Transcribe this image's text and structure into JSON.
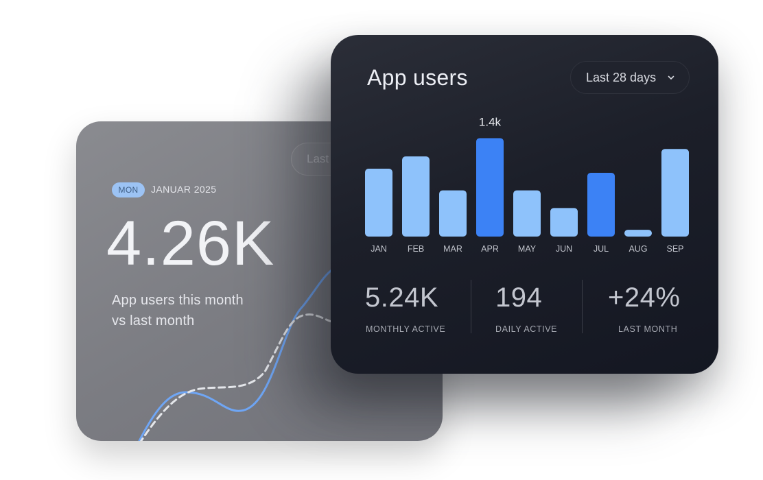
{
  "back_card": {
    "ghost_button_label": "Last 28 days",
    "badge": "MON",
    "date": "JANUAR 2025",
    "metric": "4.26K",
    "caption_line1": "App users this month",
    "caption_line2": "vs last month"
  },
  "front_card": {
    "title": "App users",
    "range_selector": {
      "label": "Last 28 days",
      "icon": "chevron-down-icon"
    }
  },
  "chart_data": {
    "type": "bar",
    "categories": [
      "JAN",
      "FEB",
      "MAR",
      "APR",
      "MAY",
      "JUN",
      "JUL",
      "AUG",
      "SEP"
    ],
    "values": [
      1.0,
      1.18,
      0.68,
      1.45,
      0.68,
      0.42,
      0.94,
      0.1,
      1.29
    ],
    "highlighted": [
      "APR",
      "JUL"
    ],
    "annotation": {
      "category": "APR",
      "text": "1.4k"
    },
    "colors": {
      "bar": "#8ec2fb",
      "highlight": "#3c82f5",
      "label": "#bfc2ca"
    },
    "grid": false
  },
  "stats": [
    {
      "value": "5.24K",
      "label": "MONTHLY ACTIVE"
    },
    {
      "value": "194",
      "label": "DAILY ACTIVE"
    },
    {
      "value": "+24%",
      "label": "LAST MONTH"
    }
  ],
  "colors": {
    "accent_blue": "#3c82f5",
    "light_blue": "#8ec2fb",
    "dark_card": "#1c1f29",
    "gray_card": "#7b7c82"
  }
}
